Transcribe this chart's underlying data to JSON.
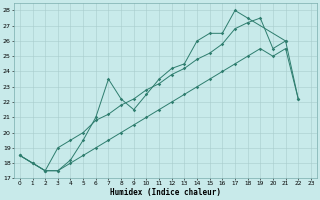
{
  "title": "",
  "xlabel": "Humidex (Indice chaleur)",
  "background_color": "#c8eaea",
  "grid_color": "#a8cccc",
  "line_color": "#2e7d6e",
  "xlim": [
    -0.5,
    23.5
  ],
  "ylim": [
    17,
    28.5
  ],
  "yticks": [
    17,
    18,
    19,
    20,
    21,
    22,
    23,
    24,
    25,
    26,
    27,
    28
  ],
  "xticks": [
    0,
    1,
    2,
    3,
    4,
    5,
    6,
    7,
    8,
    9,
    10,
    11,
    12,
    13,
    14,
    15,
    16,
    17,
    18,
    19,
    20,
    21,
    22,
    23
  ],
  "line1_x": [
    0,
    1,
    2,
    3,
    4,
    5,
    6,
    7,
    8,
    9,
    10,
    11,
    12,
    13,
    14,
    15,
    16,
    17,
    18,
    21
  ],
  "line1_y": [
    18.5,
    18.0,
    17.5,
    17.5,
    18.2,
    19.5,
    21.0,
    23.5,
    22.2,
    21.5,
    22.5,
    23.5,
    24.2,
    24.5,
    26.0,
    26.5,
    26.5,
    28.0,
    27.5,
    26.0
  ],
  "line2_x": [
    0,
    1,
    2,
    3,
    4,
    5,
    6,
    7,
    8,
    9,
    10,
    11,
    12,
    13,
    14,
    15,
    16,
    17,
    18,
    19,
    20,
    21,
    22
  ],
  "line2_y": [
    18.5,
    18.0,
    17.5,
    19.0,
    19.5,
    20.0,
    20.8,
    21.2,
    21.8,
    22.2,
    22.8,
    23.2,
    23.8,
    24.2,
    24.8,
    25.2,
    25.8,
    26.8,
    27.2,
    27.5,
    25.5,
    26.0,
    22.2
  ],
  "line3_x": [
    0,
    1,
    2,
    3,
    4,
    5,
    6,
    7,
    8,
    9,
    10,
    11,
    12,
    13,
    14,
    15,
    16,
    17,
    18,
    19,
    20,
    21,
    22
  ],
  "line3_y": [
    18.5,
    18.0,
    17.5,
    17.5,
    18.0,
    18.5,
    19.0,
    19.5,
    20.0,
    20.5,
    21.0,
    21.5,
    22.0,
    22.5,
    23.0,
    23.5,
    24.0,
    24.5,
    25.0,
    25.5,
    25.0,
    25.5,
    22.2
  ]
}
